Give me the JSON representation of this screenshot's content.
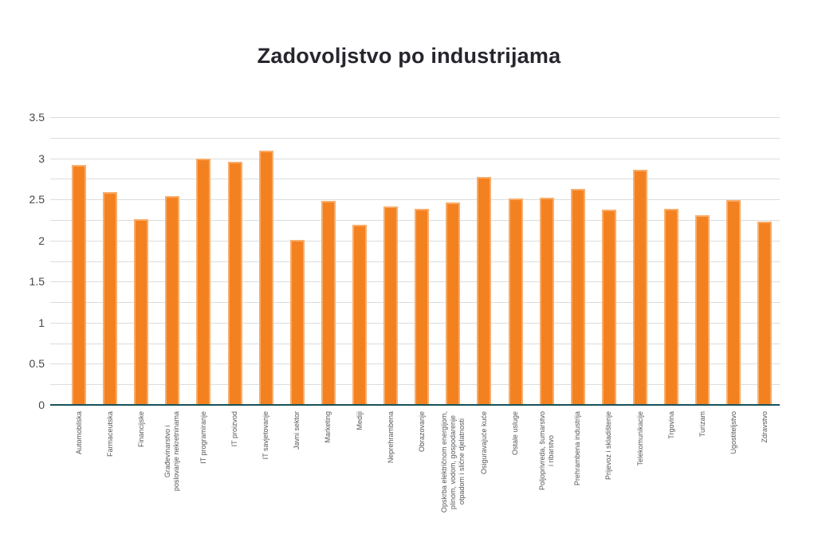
{
  "chart_data": {
    "type": "bar",
    "title": "Zadovoljstvo po industrijama",
    "xlabel": "",
    "ylabel": "",
    "ylim": [
      0,
      3.5
    ],
    "ytick_step": 0.5,
    "grid_step": 0.25,
    "grid": true,
    "legend_position": "none",
    "categories": [
      "Automobilska",
      "Farmaceutska",
      "Financijske",
      "Građevinarstvo i\nposlovanje nekretninama",
      "IT programiranje",
      "IT proizvod",
      "IT savjetovanje",
      "Javni sektor",
      "Marketing",
      "Mediji",
      "Neprehrambena",
      "Obrazovanje",
      "Opskrba električnom energijom,\nplinom, vodom, gospodarenje\notpadom i slične djelatnosti",
      "Osiguravajuće kuće",
      "Ostale usluge",
      "Poljoprivreda, šumarstvo\ni ribarstvo",
      "Prehrambena industrija",
      "Prijevoz i skladištenje",
      "Telekomunikacije",
      "Trgovina",
      "Turizam",
      "Ugostiteljstvo",
      "Zdravstvo"
    ],
    "values": [
      2.92,
      2.59,
      2.26,
      2.54,
      3.0,
      2.96,
      3.09,
      2.01,
      2.48,
      2.19,
      2.41,
      2.39,
      2.46,
      2.77,
      2.51,
      2.52,
      2.63,
      2.38,
      2.86,
      2.39,
      2.31,
      2.49,
      2.23
    ],
    "ytick_labels": [
      "0",
      "0.5",
      "1",
      "1.5",
      "2",
      "2.5",
      "3",
      "3.5"
    ]
  },
  "colors": {
    "bar_fill": "#F48120",
    "bar_edge": "#FAC493",
    "axis_baseline": "#17525A",
    "gridline": "#DBDDDD",
    "title_text": "#27262E",
    "ytick_text": "#474747",
    "xtick_text": "#55585C",
    "background": "#FFFFFF"
  }
}
